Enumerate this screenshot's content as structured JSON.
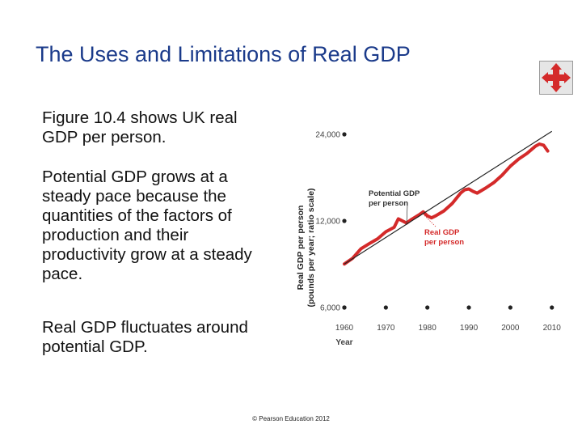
{
  "slide": {
    "title": "The Uses and Limitations of Real GDP",
    "paragraphs": [
      "Figure 10.4 shows UK real GDP per person.",
      "Potential GDP grows at a steady pace because the quantities of the factors of production and their productivity grow at a steady pace.",
      "Real GDP fluctuates around potential GDP."
    ],
    "footer": "© Pearson Education 2012",
    "nav_icon": "four-way-arrows-icon"
  },
  "colors": {
    "title": "#1a3a8a",
    "real_gdp": "#d42a2a",
    "potential_gdp": "#222222",
    "nav_icon": "#d42a2a"
  },
  "chart_data": {
    "type": "line",
    "xlabel": "Year",
    "ylabel": [
      "Real GDP per person",
      "(pounds per year; ratio scale)"
    ],
    "xlim": [
      1960,
      2012
    ],
    "x_ticks": [
      1960,
      1970,
      1980,
      1990,
      2000,
      2010
    ],
    "x_tick_labels": [
      "1960",
      "1970",
      "1980",
      "1990",
      "2000",
      "2010"
    ],
    "ylim": [
      6000,
      24000
    ],
    "y_scale": "log",
    "y_ticks": [
      6000,
      12000,
      24000
    ],
    "y_tick_labels": [
      "6,000",
      "12,000",
      "24,000"
    ],
    "grid": false,
    "series": [
      {
        "name": "Potential GDP per person",
        "label_lines": [
          "Potential GDP",
          "per person"
        ],
        "color": "#222222",
        "x": [
          1960,
          2010
        ],
        "y": [
          8500,
          24600
        ]
      },
      {
        "name": "Real GDP per person",
        "label_lines": [
          "Real GDP",
          "per person"
        ],
        "color": "#d42a2a",
        "x": [
          1960,
          1962,
          1964,
          1966,
          1968,
          1970,
          1972,
          1973,
          1974,
          1975,
          1976,
          1978,
          1979,
          1980,
          1981,
          1982,
          1984,
          1986,
          1988,
          1989,
          1990,
          1991,
          1992,
          1994,
          1996,
          1998,
          2000,
          2002,
          2004,
          2006,
          2007,
          2008,
          2009
        ],
        "y": [
          8500,
          8900,
          9600,
          10000,
          10400,
          11000,
          11400,
          12200,
          12000,
          11800,
          12100,
          12600,
          12900,
          12500,
          12300,
          12500,
          13000,
          13800,
          15000,
          15400,
          15500,
          15200,
          15000,
          15600,
          16300,
          17300,
          18600,
          19700,
          20600,
          21800,
          22200,
          22000,
          21000
        ]
      }
    ]
  }
}
